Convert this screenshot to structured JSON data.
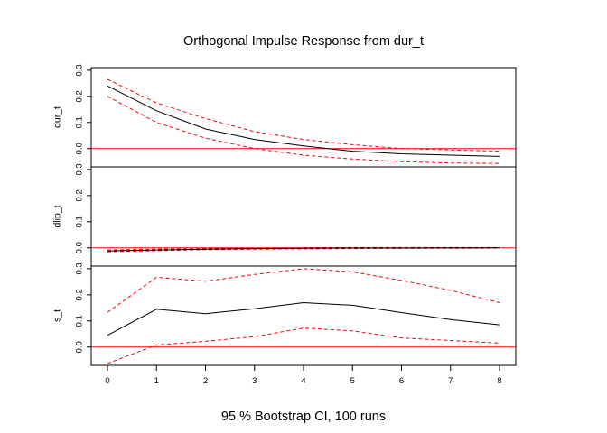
{
  "chart_data": {
    "type": "line",
    "title": "Orthogonal Impulse Response from dur_t",
    "subtitle": "95 % Bootstrap CI,  100 runs",
    "x": [
      0,
      1,
      2,
      3,
      4,
      5,
      6,
      7,
      8
    ],
    "xlim": [
      0,
      8
    ],
    "x_tick_labels": [
      "0",
      "1",
      "2",
      "3",
      "4",
      "5",
      "6",
      "7",
      "8"
    ],
    "panels": [
      {
        "ylabel": "dur_t",
        "ylim": [
          -0.07,
          0.31
        ],
        "y_ticks": [
          0.0,
          0.1,
          0.2,
          0.3
        ],
        "y_tick_labels": [
          "0.0",
          "0.1",
          "0.2",
          "0.3"
        ],
        "response": [
          0.24,
          0.145,
          0.075,
          0.035,
          0.01,
          -0.01,
          -0.02,
          -0.025,
          -0.03
        ],
        "lower": [
          0.2,
          0.1,
          0.04,
          0.0,
          -0.025,
          -0.04,
          -0.05,
          -0.055,
          -0.057
        ],
        "upper": [
          0.265,
          0.175,
          0.115,
          0.065,
          0.035,
          0.015,
          0.0,
          -0.005,
          -0.01
        ]
      },
      {
        "ylabel": "dlip_t",
        "ylim": [
          -0.07,
          0.31
        ],
        "y_ticks": [
          0.0,
          0.1,
          0.2,
          0.3
        ],
        "y_tick_labels": [
          "0.0",
          "0.1",
          "0.2",
          "0.3"
        ],
        "response": [
          -0.012,
          -0.008,
          -0.005,
          -0.003,
          -0.002,
          -0.001,
          -0.001,
          0.0,
          0.0
        ],
        "lower": [
          -0.015,
          -0.011,
          -0.007,
          -0.005,
          -0.004,
          -0.003,
          -0.002,
          -0.002,
          -0.001
        ],
        "upper": [
          -0.008,
          -0.005,
          -0.003,
          -0.001,
          0.0,
          0.001,
          0.001,
          0.001,
          0.001
        ]
      },
      {
        "ylabel": "s_t",
        "ylim": [
          -0.07,
          0.31
        ],
        "y_ticks": [
          0.0,
          0.1,
          0.2,
          0.3
        ],
        "y_tick_labels": [
          "0.0",
          "0.1",
          "0.2",
          "0.3"
        ],
        "response": [
          0.045,
          0.145,
          0.128,
          0.147,
          0.17,
          0.16,
          0.132,
          0.105,
          0.085
        ],
        "lower": [
          -0.063,
          0.008,
          0.022,
          0.04,
          0.073,
          0.062,
          0.035,
          0.025,
          0.015
        ],
        "upper": [
          0.133,
          0.267,
          0.252,
          0.278,
          0.3,
          0.288,
          0.255,
          0.217,
          0.17
        ]
      }
    ],
    "colors": {
      "response": "#000000",
      "ci": "#ff0000",
      "zero_line": "#ff0000"
    },
    "grid": false,
    "legend": "none"
  }
}
